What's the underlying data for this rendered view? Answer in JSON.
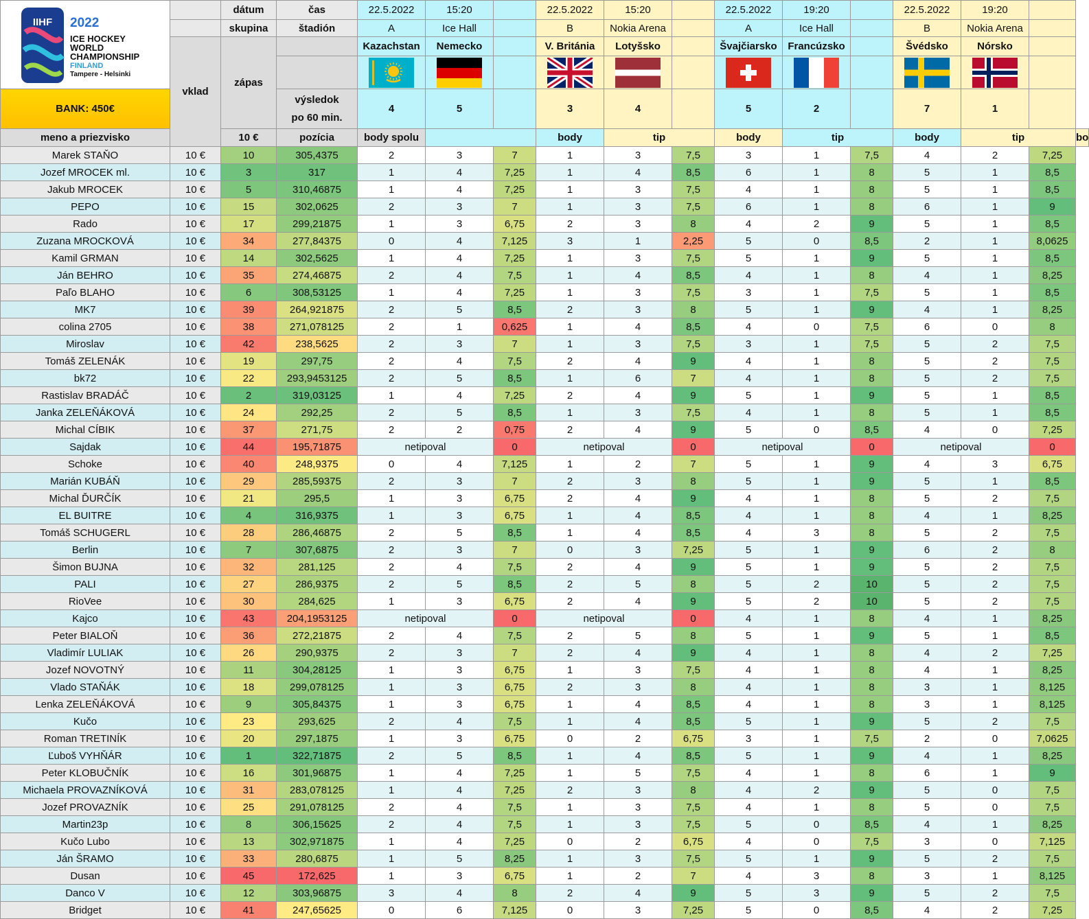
{
  "logo": {
    "brand": "IIHF",
    "year": "2022",
    "line1": "ICE HOCKEY",
    "line2": "WORLD",
    "line3": "CHAMPIONSHIP",
    "country": "FINLAND",
    "cities": "Tampere - Helsinki"
  },
  "bank": "BANK: 450€",
  "headers": {
    "datum": "dátum",
    "cas": "čas",
    "skupina": "skupina",
    "stadion": "štadión",
    "vklad": "vklad",
    "zapas": "zápas",
    "vysledok1": "výsledok",
    "vysledok2": "po 60 min.",
    "meno": "meno a priezvisko",
    "vklad_val": "10 €",
    "pozicia": "pozícia",
    "body_spolu": "body spolu",
    "body": "body",
    "tip": "tip"
  },
  "matches": [
    {
      "date": "22.5.2022",
      "time": "15:20",
      "group": "A",
      "arena": "Ice Hall",
      "home": "Kazachstan",
      "away": "Nemecko",
      "home_flag": "kazakhstan-flag",
      "away_flag": "germany-flag",
      "home_score": "4",
      "away_score": "5",
      "theme": "cyan"
    },
    {
      "date": "22.5.2022",
      "time": "15:20",
      "group": "B",
      "arena": "Nokia Arena",
      "home": "V. Británia",
      "away": "Lotyšsko",
      "home_flag": "uk-flag",
      "away_flag": "latvia-flag",
      "home_score": "3",
      "away_score": "4",
      "theme": "yellow"
    },
    {
      "date": "22.5.2022",
      "time": "19:20",
      "group": "A",
      "arena": "Ice Hall",
      "home": "Švajčiarsko",
      "away": "Francúzsko",
      "home_flag": "switzerland-flag",
      "away_flag": "france-flag",
      "home_score": "5",
      "away_score": "2",
      "theme": "cyan"
    },
    {
      "date": "22.5.2022",
      "time": "19:20",
      "group": "B",
      "arena": "Nokia Arena",
      "home": "Švédsko",
      "away": "Nórsko",
      "home_flag": "sweden-flag",
      "away_flag": "norway-flag",
      "home_score": "7",
      "away_score": "1",
      "theme": "yellow"
    }
  ],
  "players": [
    [
      "Marek STAŇO",
      "10 €",
      "10",
      "305,4375",
      "2",
      "3",
      "7",
      "1",
      "3",
      "7,5",
      "3",
      "1",
      "7,5",
      "4",
      "2",
      "7,25"
    ],
    [
      "Jozef MROCEK ml.",
      "10 €",
      "3",
      "317",
      "1",
      "4",
      "7,25",
      "1",
      "4",
      "8,5",
      "6",
      "1",
      "8",
      "5",
      "1",
      "8,5"
    ],
    [
      "Jakub MROCEK",
      "10 €",
      "5",
      "310,46875",
      "1",
      "4",
      "7,25",
      "1",
      "3",
      "7,5",
      "4",
      "1",
      "8",
      "5",
      "1",
      "8,5"
    ],
    [
      "PEPO",
      "10 €",
      "15",
      "302,0625",
      "2",
      "3",
      "7",
      "1",
      "3",
      "7,5",
      "6",
      "1",
      "8",
      "6",
      "1",
      "9"
    ],
    [
      "Rado",
      "10 €",
      "17",
      "299,21875",
      "1",
      "3",
      "6,75",
      "2",
      "3",
      "8",
      "4",
      "2",
      "9",
      "5",
      "1",
      "8,5"
    ],
    [
      "Zuzana MROCKOVÁ",
      "10 €",
      "34",
      "277,84375",
      "0",
      "4",
      "7,125",
      "3",
      "1",
      "2,25",
      "5",
      "0",
      "8,5",
      "2",
      "1",
      "8,0625"
    ],
    [
      "Kamil GRMAN",
      "10 €",
      "14",
      "302,5625",
      "1",
      "4",
      "7,25",
      "1",
      "3",
      "7,5",
      "5",
      "1",
      "9",
      "5",
      "1",
      "8,5"
    ],
    [
      "Ján BEHRO",
      "10 €",
      "35",
      "274,46875",
      "2",
      "4",
      "7,5",
      "1",
      "4",
      "8,5",
      "4",
      "1",
      "8",
      "4",
      "1",
      "8,25"
    ],
    [
      "Paľo BLAHO",
      "10 €",
      "6",
      "308,53125",
      "1",
      "4",
      "7,25",
      "1",
      "3",
      "7,5",
      "3",
      "1",
      "7,5",
      "5",
      "1",
      "8,5"
    ],
    [
      "MK7",
      "10 €",
      "39",
      "264,921875",
      "2",
      "5",
      "8,5",
      "2",
      "3",
      "8",
      "5",
      "1",
      "9",
      "4",
      "1",
      "8,25"
    ],
    [
      "colina 2705",
      "10 €",
      "38",
      "271,078125",
      "2",
      "1",
      "0,625",
      "1",
      "4",
      "8,5",
      "4",
      "0",
      "7,5",
      "6",
      "0",
      "8"
    ],
    [
      "Miroslav",
      "10 €",
      "42",
      "238,5625",
      "2",
      "3",
      "7",
      "1",
      "3",
      "7,5",
      "3",
      "1",
      "7,5",
      "5",
      "2",
      "7,5"
    ],
    [
      "Tomáš ZELENÁK",
      "10 €",
      "19",
      "297,75",
      "2",
      "4",
      "7,5",
      "2",
      "4",
      "9",
      "4",
      "1",
      "8",
      "5",
      "2",
      "7,5"
    ],
    [
      "bk72",
      "10 €",
      "22",
      "293,9453125",
      "2",
      "5",
      "8,5",
      "1",
      "6",
      "7",
      "4",
      "1",
      "8",
      "5",
      "2",
      "7,5"
    ],
    [
      "Rastislav BRADÁČ",
      "10 €",
      "2",
      "319,03125",
      "1",
      "4",
      "7,25",
      "2",
      "4",
      "9",
      "5",
      "1",
      "9",
      "5",
      "1",
      "8,5"
    ],
    [
      "Janka ZELEŇÁKOVÁ",
      "10 €",
      "24",
      "292,25",
      "2",
      "5",
      "8,5",
      "1",
      "3",
      "7,5",
      "4",
      "1",
      "8",
      "5",
      "1",
      "8,5"
    ],
    [
      "Michal CÍBIK",
      "10 €",
      "37",
      "271,75",
      "2",
      "2",
      "0,75",
      "2",
      "4",
      "9",
      "5",
      "0",
      "8,5",
      "4",
      "0",
      "7,25"
    ],
    [
      "Sajdak",
      "10 €",
      "44",
      "195,71875",
      "netipoval",
      "",
      "0",
      "netipoval",
      "",
      "0",
      "netipoval",
      "",
      "0",
      "netipoval",
      "",
      "0"
    ],
    [
      "Schoke",
      "10 €",
      "40",
      "248,9375",
      "0",
      "4",
      "7,125",
      "1",
      "2",
      "7",
      "5",
      "1",
      "9",
      "4",
      "3",
      "6,75"
    ],
    [
      "Marián KUBÁŇ",
      "10 €",
      "29",
      "285,59375",
      "2",
      "3",
      "7",
      "2",
      "3",
      "8",
      "5",
      "1",
      "9",
      "5",
      "1",
      "8,5"
    ],
    [
      "Michal ĎURČÍK",
      "10 €",
      "21",
      "295,5",
      "1",
      "3",
      "6,75",
      "2",
      "4",
      "9",
      "4",
      "1",
      "8",
      "5",
      "2",
      "7,5"
    ],
    [
      "EL BUITRE",
      "10 €",
      "4",
      "316,9375",
      "1",
      "3",
      "6,75",
      "1",
      "4",
      "8,5",
      "4",
      "1",
      "8",
      "4",
      "1",
      "8,25"
    ],
    [
      "Tomáš SCHUGERL",
      "10 €",
      "28",
      "286,46875",
      "2",
      "5",
      "8,5",
      "1",
      "4",
      "8,5",
      "4",
      "3",
      "8",
      "5",
      "2",
      "7,5"
    ],
    [
      "Berlin",
      "10 €",
      "7",
      "307,6875",
      "2",
      "3",
      "7",
      "0",
      "3",
      "7,25",
      "5",
      "1",
      "9",
      "6",
      "2",
      "8"
    ],
    [
      "Šimon BUJNA",
      "10 €",
      "32",
      "281,125",
      "2",
      "4",
      "7,5",
      "2",
      "4",
      "9",
      "5",
      "1",
      "9",
      "5",
      "2",
      "7,5"
    ],
    [
      "PALI",
      "10 €",
      "27",
      "286,9375",
      "2",
      "5",
      "8,5",
      "2",
      "5",
      "8",
      "5",
      "2",
      "10",
      "5",
      "2",
      "7,5"
    ],
    [
      "RioVee",
      "10 €",
      "30",
      "284,625",
      "1",
      "3",
      "6,75",
      "2",
      "4",
      "9",
      "5",
      "2",
      "10",
      "5",
      "2",
      "7,5"
    ],
    [
      "Kajco",
      "10 €",
      "43",
      "204,1953125",
      "netipoval",
      "",
      "0",
      "netipoval",
      "",
      "0",
      "4",
      "1",
      "8",
      "4",
      "1",
      "8,25"
    ],
    [
      "Peter BIALOŇ",
      "10 €",
      "36",
      "272,21875",
      "2",
      "4",
      "7,5",
      "2",
      "5",
      "8",
      "5",
      "1",
      "9",
      "5",
      "1",
      "8,5"
    ],
    [
      "Vladimír LULIAK",
      "10 €",
      "26",
      "290,9375",
      "2",
      "3",
      "7",
      "2",
      "4",
      "9",
      "4",
      "1",
      "8",
      "4",
      "2",
      "7,25"
    ],
    [
      "Jozef NOVOTNÝ",
      "10 €",
      "11",
      "304,28125",
      "1",
      "3",
      "6,75",
      "1",
      "3",
      "7,5",
      "4",
      "1",
      "8",
      "4",
      "1",
      "8,25"
    ],
    [
      "Vlado STAŇÁK",
      "10 €",
      "18",
      "299,078125",
      "1",
      "3",
      "6,75",
      "2",
      "3",
      "8",
      "4",
      "1",
      "8",
      "3",
      "1",
      "8,125"
    ],
    [
      "Lenka ZELEŇÁKOVÁ",
      "10 €",
      "9",
      "305,84375",
      "1",
      "3",
      "6,75",
      "1",
      "4",
      "8,5",
      "4",
      "1",
      "8",
      "3",
      "1",
      "8,125"
    ],
    [
      "Kučo",
      "10 €",
      "23",
      "293,625",
      "2",
      "4",
      "7,5",
      "1",
      "4",
      "8,5",
      "5",
      "1",
      "9",
      "5",
      "2",
      "7,5"
    ],
    [
      "Roman TRETINÍK",
      "10 €",
      "20",
      "297,1875",
      "1",
      "3",
      "6,75",
      "0",
      "2",
      "6,75",
      "3",
      "1",
      "7,5",
      "2",
      "0",
      "7,0625"
    ],
    [
      "Ľuboš VYHŇÁR",
      "10 €",
      "1",
      "322,71875",
      "2",
      "5",
      "8,5",
      "1",
      "4",
      "8,5",
      "5",
      "1",
      "9",
      "4",
      "1",
      "8,25"
    ],
    [
      "Peter KLOBUČNÍK",
      "10 €",
      "16",
      "301,96875",
      "1",
      "4",
      "7,25",
      "1",
      "5",
      "7,5",
      "4",
      "1",
      "8",
      "6",
      "1",
      "9"
    ],
    [
      "Michaela PROVAZNÍKOVÁ",
      "10 €",
      "31",
      "283,078125",
      "1",
      "4",
      "7,25",
      "2",
      "3",
      "8",
      "4",
      "2",
      "9",
      "5",
      "0",
      "7,5"
    ],
    [
      "Jozef PROVAZNÍK",
      "10 €",
      "25",
      "291,078125",
      "2",
      "4",
      "7,5",
      "1",
      "3",
      "7,5",
      "4",
      "1",
      "8",
      "5",
      "0",
      "7,5"
    ],
    [
      "Martin23p",
      "10 €",
      "8",
      "306,15625",
      "2",
      "4",
      "7,5",
      "1",
      "3",
      "7,5",
      "5",
      "0",
      "8,5",
      "4",
      "1",
      "8,25"
    ],
    [
      "Kučo Lubo",
      "10 €",
      "13",
      "302,971875",
      "1",
      "4",
      "7,25",
      "0",
      "2",
      "6,75",
      "4",
      "0",
      "7,5",
      "3",
      "0",
      "7,125"
    ],
    [
      "Ján ŠRAMO",
      "10 €",
      "33",
      "280,6875",
      "1",
      "5",
      "8,25",
      "1",
      "3",
      "7,5",
      "5",
      "1",
      "9",
      "5",
      "2",
      "7,5"
    ],
    [
      "Dusan",
      "10 €",
      "45",
      "172,625",
      "1",
      "3",
      "6,75",
      "1",
      "2",
      "7",
      "4",
      "3",
      "8",
      "3",
      "1",
      "8,125"
    ],
    [
      "Danco V",
      "10 €",
      "12",
      "303,96875",
      "3",
      "4",
      "8",
      "2",
      "4",
      "9",
      "5",
      "3",
      "9",
      "5",
      "2",
      "7,5"
    ],
    [
      "Bridget",
      "10 €",
      "41",
      "247,65625",
      "0",
      "6",
      "7,125",
      "0",
      "3",
      "7,25",
      "5",
      "0",
      "8,5",
      "4",
      "2",
      "7,25"
    ]
  ],
  "colors": {
    "cyan": "#bdf3fb",
    "yellow": "#fff4c2",
    "bank": "#ffc000",
    "best": "#63be7b",
    "mid": "#ffeb84",
    "worst": "#f8696b"
  }
}
